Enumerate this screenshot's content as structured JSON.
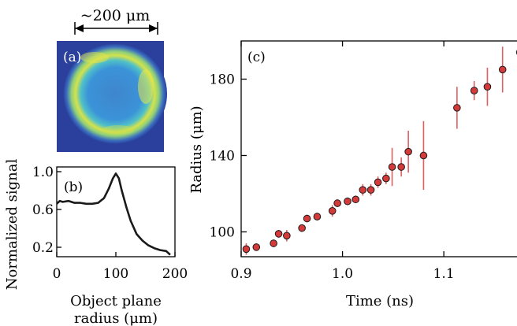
{
  "scale_bar": {
    "label": "~200 μm"
  },
  "chart_data": [
    {
      "panel": "(a)",
      "type": "heatmap",
      "description_colormap": "viridis-like ring",
      "colors": {
        "background": "#2a3f9e",
        "ring": "#d9e64a",
        "inner": "#3b8fd6"
      }
    },
    {
      "panel": "(b)",
      "type": "line",
      "xlabel": "Object plane radius (μm)",
      "xlabel_line1": "Object plane",
      "xlabel_line2": "radius (μm)",
      "ylabel": "Normalized signal",
      "xlim": [
        0,
        200
      ],
      "ylim": [
        0.1,
        1.05
      ],
      "xticks": [
        0,
        100,
        200
      ],
      "xtick_labels": [
        "0",
        "100",
        "200"
      ],
      "yticks": [
        0.2,
        0.6,
        1.0
      ],
      "ytick_labels": [
        "0.2",
        "0.6",
        "1.0"
      ],
      "series": [
        {
          "color": "#1a1a1a",
          "x": [
            0,
            5,
            10,
            20,
            30,
            40,
            50,
            60,
            70,
            80,
            88,
            95,
            100,
            105,
            110,
            118,
            125,
            135,
            145,
            155,
            165,
            175,
            185,
            192
          ],
          "y": [
            0.66,
            0.69,
            0.68,
            0.69,
            0.67,
            0.67,
            0.66,
            0.66,
            0.67,
            0.72,
            0.82,
            0.93,
            0.98,
            0.93,
            0.8,
            0.62,
            0.48,
            0.34,
            0.27,
            0.22,
            0.19,
            0.17,
            0.16,
            0.12
          ]
        }
      ]
    },
    {
      "panel": "(c)",
      "type": "scatter",
      "xlabel": "Time (ns)",
      "ylabel": "Radius (μm)",
      "xlim": [
        0.9,
        1.18
      ],
      "ylim": [
        87,
        200
      ],
      "xticks": [
        0.9,
        1.0,
        1.1
      ],
      "xtick_labels": [
        "0.9",
        "1.0",
        "1.1"
      ],
      "yticks": [
        100,
        140,
        180
      ],
      "ytick_labels": [
        "100",
        "140",
        "180"
      ],
      "marker_color": "#d43a3a",
      "errorbar_color": "#e06060",
      "points": [
        {
          "x": 0.905,
          "y": 91,
          "err": 3
        },
        {
          "x": 0.915,
          "y": 92,
          "err": 2
        },
        {
          "x": 0.932,
          "y": 94,
          "err": 2
        },
        {
          "x": 0.937,
          "y": 99,
          "err": 2
        },
        {
          "x": 0.945,
          "y": 98,
          "err": 3
        },
        {
          "x": 0.96,
          "y": 102,
          "err": 2
        },
        {
          "x": 0.965,
          "y": 107,
          "err": 2
        },
        {
          "x": 0.975,
          "y": 108,
          "err": 2
        },
        {
          "x": 0.99,
          "y": 111,
          "err": 3
        },
        {
          "x": 0.995,
          "y": 115,
          "err": 2
        },
        {
          "x": 1.005,
          "y": 116,
          "err": 2
        },
        {
          "x": 1.013,
          "y": 117,
          "err": 2
        },
        {
          "x": 1.02,
          "y": 122,
          "err": 3
        },
        {
          "x": 1.028,
          "y": 122,
          "err": 3
        },
        {
          "x": 1.035,
          "y": 126,
          "err": 3
        },
        {
          "x": 1.043,
          "y": 128,
          "err": 3
        },
        {
          "x": 1.049,
          "y": 134,
          "err": 10
        },
        {
          "x": 1.058,
          "y": 134,
          "err": 5
        },
        {
          "x": 1.065,
          "y": 142,
          "err": 11
        },
        {
          "x": 1.08,
          "y": 140,
          "err": 18
        },
        {
          "x": 1.113,
          "y": 165,
          "err": 11
        },
        {
          "x": 1.13,
          "y": 174,
          "err": 5
        },
        {
          "x": 1.143,
          "y": 176,
          "err": 10
        },
        {
          "x": 1.158,
          "y": 185,
          "err": 12
        },
        {
          "x": 1.175,
          "y": 194,
          "err": 12
        }
      ]
    }
  ]
}
